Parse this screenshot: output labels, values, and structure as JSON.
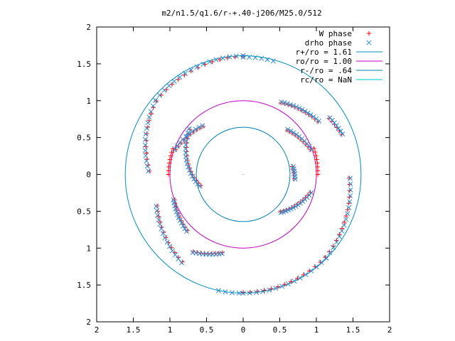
{
  "chart_data": {
    "type": "scatter",
    "title": "m2/n1.5/q1.6/r-+.40-j206/M25.0/512",
    "xlim": [
      -2,
      2
    ],
    "ylim": [
      -2,
      2
    ],
    "x_ticks": [
      {
        "value": -2,
        "label": "2"
      },
      {
        "value": -1.5,
        "label": "1.5"
      },
      {
        "value": -1,
        "label": "1"
      },
      {
        "value": -0.5,
        "label": "0.5"
      },
      {
        "value": 0,
        "label": "0"
      },
      {
        "value": 0.5,
        "label": "0.5"
      },
      {
        "value": 1,
        "label": "1"
      },
      {
        "value": 1.5,
        "label": "1.5"
      },
      {
        "value": 2,
        "label": "2"
      }
    ],
    "y_ticks": [
      {
        "value": 2,
        "label": "2"
      },
      {
        "value": 1.5,
        "label": "1.5"
      },
      {
        "value": 1,
        "label": "1"
      },
      {
        "value": 0.5,
        "label": "0.5"
      },
      {
        "value": 0,
        "label": "0"
      },
      {
        "value": -0.5,
        "label": "0.5"
      },
      {
        "value": -1,
        "label": "1"
      },
      {
        "value": -1.5,
        "label": "1.5"
      },
      {
        "value": -2,
        "label": "2"
      }
    ],
    "grid": false,
    "legend_position": "top-right",
    "circles": [
      {
        "name": "r+/ro = 1.61",
        "radius": 1.61,
        "color": "#0090c0"
      },
      {
        "name": "ro/ro = 1.00",
        "radius": 1.0,
        "color": "#c000c0"
      },
      {
        "name": "r-/ro = .64",
        "radius": 0.64,
        "color": "#0080b0"
      },
      {
        "name": "rc/ro = NaN",
        "radius": null,
        "color": "#00c0d0"
      }
    ],
    "series": [
      {
        "name": "W phase",
        "marker": "plus",
        "color": "#ff0000",
        "arcs": [
          {
            "r0": 1.6,
            "r1": 1.55,
            "a0": 90,
            "a1": 140,
            "n": 14
          },
          {
            "r0": 1.55,
            "r1": 1.28,
            "a0": 140,
            "a1": 178,
            "n": 12
          },
          {
            "r0": 1.25,
            "r1": 1.45,
            "a0": 200,
            "a1": 235,
            "n": 12
          },
          {
            "r0": 1.25,
            "r1": 1.1,
            "a0": 237,
            "a1": 255,
            "n": 9
          },
          {
            "r0": 1.6,
            "r1": 1.59,
            "a0": 270,
            "a1": 315,
            "n": 14
          },
          {
            "r0": 1.59,
            "r1": 1.45,
            "a0": 315,
            "a1": 358,
            "n": 14
          },
          {
            "r0": 1.45,
            "r1": 1.4,
            "a0": 22,
            "a1": 33,
            "n": 6
          },
          {
            "r0": 1.25,
            "r1": 1.1,
            "a0": 35,
            "a1": 62,
            "n": 12
          },
          {
            "r0": 1.02,
            "r1": 1.03,
            "a0": 0,
            "a1": 20,
            "n": 8
          },
          {
            "r0": 0.98,
            "r1": 0.85,
            "a0": 20,
            "a1": 45,
            "n": 10
          },
          {
            "r0": 1.02,
            "r1": 1.02,
            "a0": 180,
            "a1": 160,
            "n": 8
          },
          {
            "r0": 0.98,
            "r1": 0.85,
            "a0": 160,
            "a1": 130,
            "n": 10
          },
          {
            "r0": 0.95,
            "r1": 0.72,
            "a0": -15,
            "a1": -45,
            "n": 12
          },
          {
            "r0": 0.68,
            "r1": 0.7,
            "a0": 9,
            "a1": -5,
            "n": 5
          },
          {
            "r0": 1.0,
            "r1": 1.08,
            "a0": 200,
            "a1": 225,
            "n": 10
          },
          {
            "r0": 0.6,
            "r1": 0.95,
            "a0": 195,
            "a1": 140,
            "n": 16
          }
        ]
      },
      {
        "name": "drho phase",
        "marker": "cross",
        "color": "#2a8fd8",
        "arcs": [
          {
            "r0": 1.6,
            "r1": 1.55,
            "a0": 90,
            "a1": 140,
            "n": 16
          },
          {
            "r0": 1.55,
            "r1": 1.28,
            "a0": 140,
            "a1": 178,
            "n": 14
          },
          {
            "r0": 1.25,
            "r1": 1.45,
            "a0": 200,
            "a1": 235,
            "n": 14
          },
          {
            "r0": 1.25,
            "r1": 1.1,
            "a0": 237,
            "a1": 255,
            "n": 10
          },
          {
            "r0": 1.6,
            "r1": 1.59,
            "a0": 270,
            "a1": 315,
            "n": 15
          },
          {
            "r0": 1.59,
            "r1": 1.45,
            "a0": 315,
            "a1": 358,
            "n": 15
          },
          {
            "r0": 1.45,
            "r1": 1.4,
            "a0": 22,
            "a1": 33,
            "n": 7
          },
          {
            "r0": 1.25,
            "r1": 1.1,
            "a0": 35,
            "a1": 62,
            "n": 14
          },
          {
            "r0": 0.98,
            "r1": 0.85,
            "a0": 20,
            "a1": 45,
            "n": 10
          },
          {
            "r0": 0.98,
            "r1": 0.85,
            "a0": 160,
            "a1": 130,
            "n": 10
          },
          {
            "r0": 0.95,
            "r1": 0.72,
            "a0": -15,
            "a1": -45,
            "n": 14
          },
          {
            "r0": 0.68,
            "r1": 0.7,
            "a0": 9,
            "a1": -5,
            "n": 6
          },
          {
            "r0": 1.0,
            "r1": 1.08,
            "a0": 200,
            "a1": 225,
            "n": 12
          },
          {
            "r0": 0.6,
            "r1": 0.95,
            "a0": 195,
            "a1": 140,
            "n": 18
          },
          {
            "r0": 1.58,
            "r1": 1.58,
            "a0": 75,
            "a1": 90,
            "n": 6
          },
          {
            "r0": 1.6,
            "r1": 1.6,
            "a0": 258,
            "a1": 268,
            "n": 4
          }
        ]
      }
    ]
  }
}
